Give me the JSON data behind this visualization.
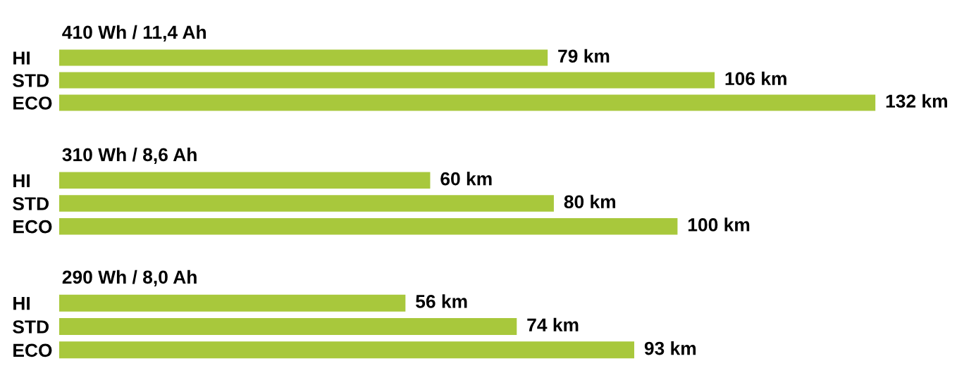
{
  "chart_data": [
    {
      "type": "bar",
      "orientation": "horizontal",
      "title": "410 Wh / 11,4 Ah",
      "categories": [
        "HI",
        "STD",
        "ECO"
      ],
      "values": [
        79,
        106,
        132
      ],
      "value_labels": [
        "79 km",
        "106 km",
        "132 km"
      ],
      "color": "#a8c83c",
      "tick_labels": "y",
      "grid": false,
      "legend": false
    },
    {
      "type": "bar",
      "orientation": "horizontal",
      "title": "310 Wh / 8,6 Ah",
      "categories": [
        "HI",
        "STD",
        "ECO"
      ],
      "values": [
        60,
        80,
        100
      ],
      "value_labels": [
        "60 km",
        "80 km",
        "100 km"
      ],
      "color": "#a8c83c",
      "tick_labels": "y",
      "grid": false,
      "legend": false
    },
    {
      "type": "bar",
      "orientation": "horizontal",
      "title": "290 Wh / 8,0 Ah",
      "categories": [
        "HI",
        "STD",
        "ECO"
      ],
      "values": [
        56,
        74,
        93
      ],
      "value_labels": [
        "56 km",
        "74 km",
        "93 km"
      ],
      "color": "#a8c83c",
      "tick_labels": "y",
      "grid": false,
      "legend": false
    }
  ]
}
